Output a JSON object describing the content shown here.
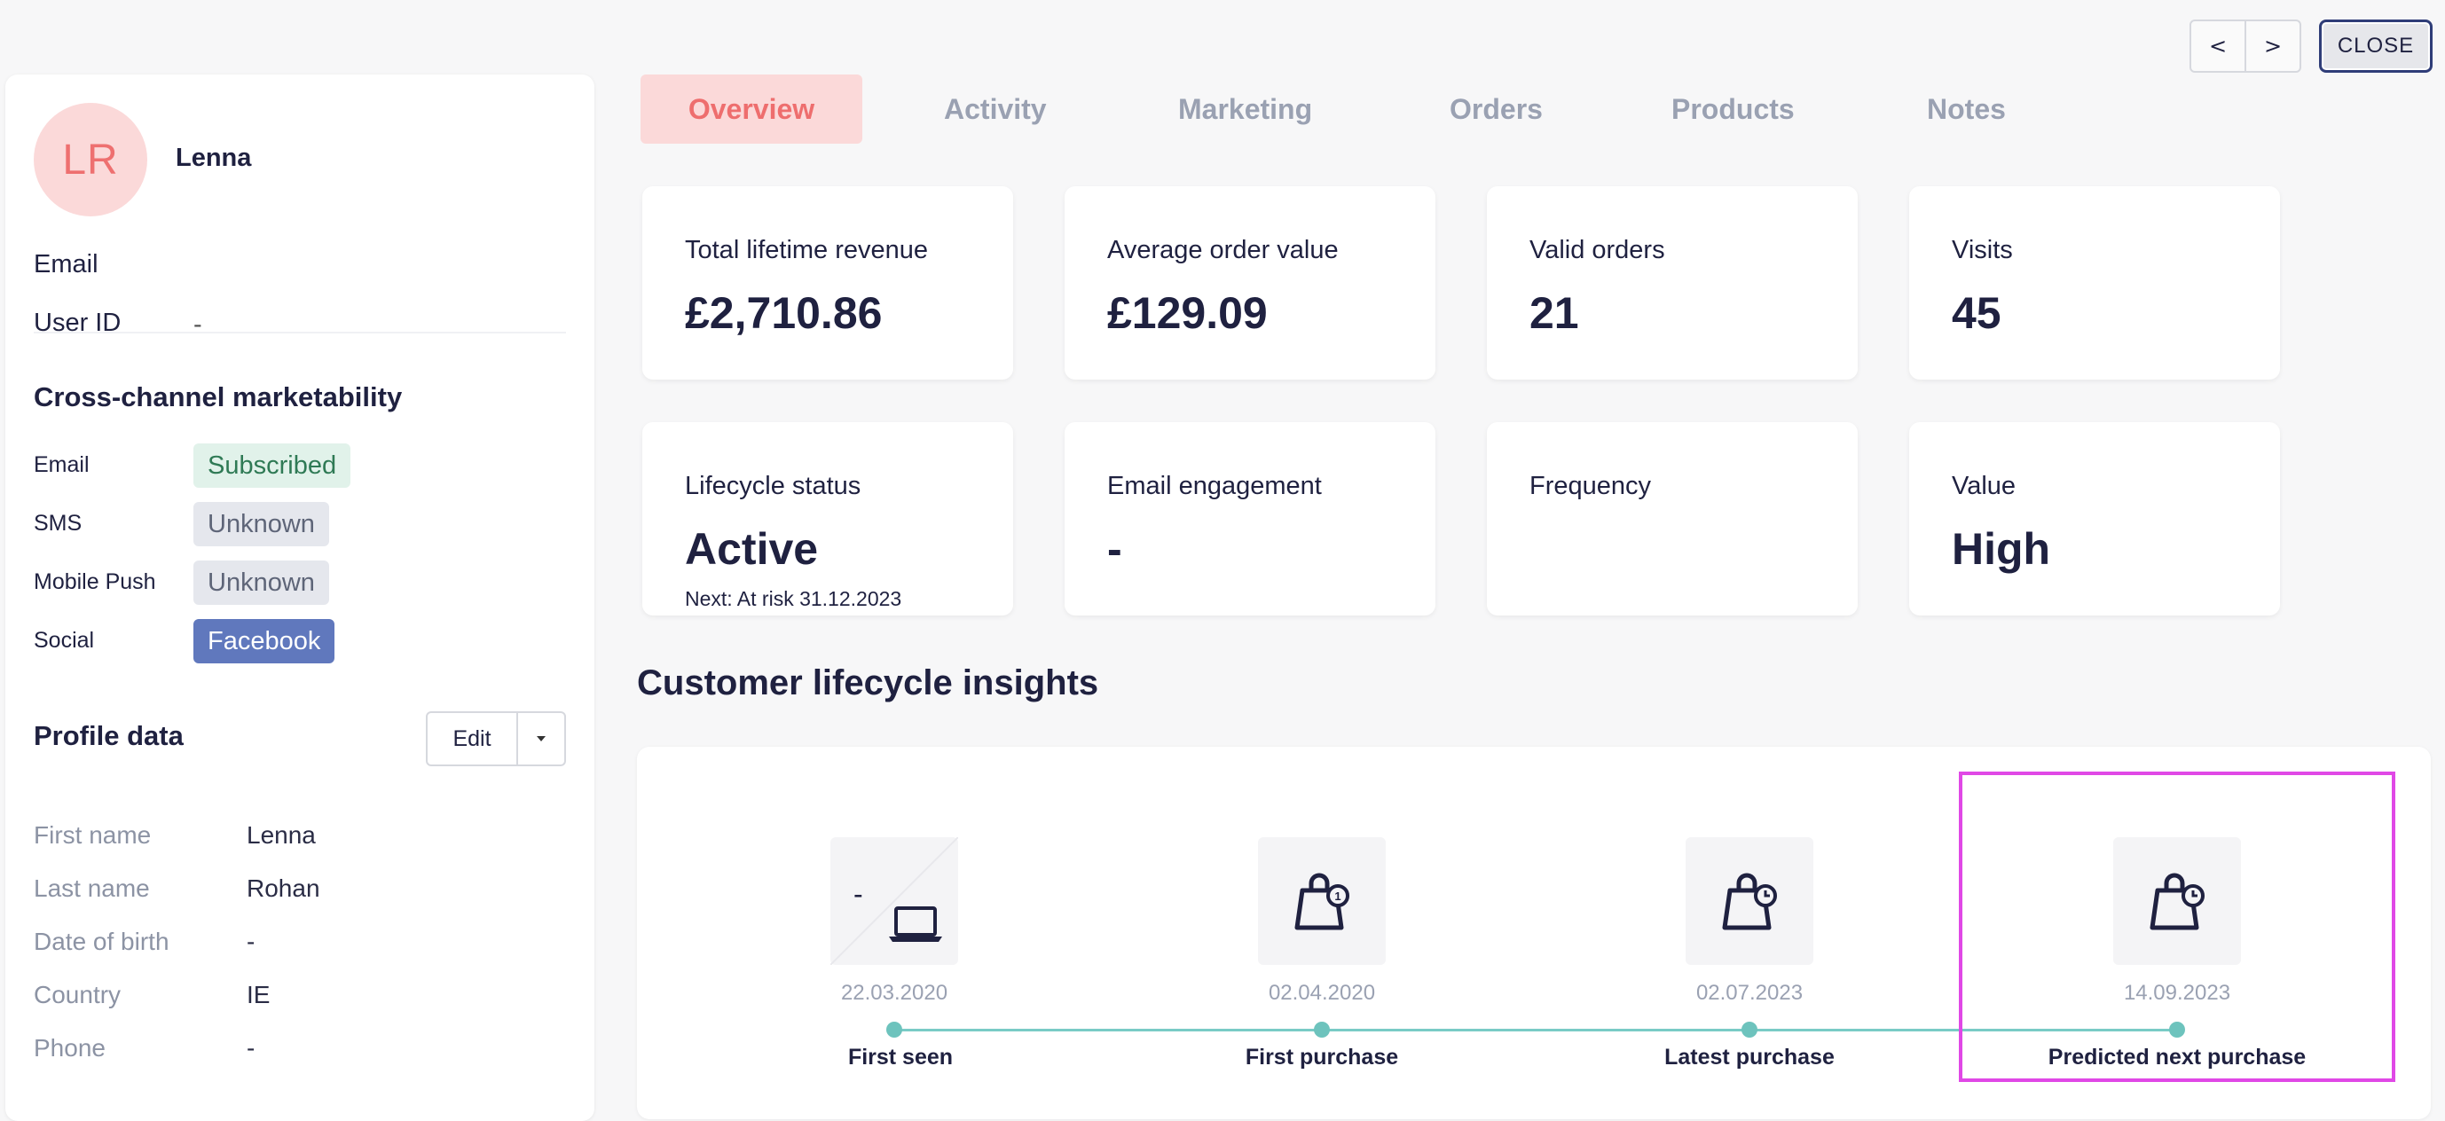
{
  "nav": {
    "prev": "<",
    "next": ">",
    "close": "CLOSE"
  },
  "profile": {
    "initials": "LR",
    "name": "Lenna",
    "email_label": "Email",
    "email_value": "",
    "userid_label": "User ID",
    "userid_value": "-"
  },
  "marketability": {
    "title": "Cross-channel marketability",
    "rows": [
      {
        "channel": "Email",
        "status": "Subscribed"
      },
      {
        "channel": "SMS",
        "status": "Unknown"
      },
      {
        "channel": "Mobile Push",
        "status": "Unknown"
      },
      {
        "channel": "Social",
        "status": "Facebook"
      }
    ]
  },
  "profile_data": {
    "title": "Profile data",
    "edit_label": "Edit",
    "fields": [
      {
        "label": "First name",
        "value": "Lenna"
      },
      {
        "label": "Last name",
        "value": "Rohan"
      },
      {
        "label": "Date of birth",
        "value": "-"
      },
      {
        "label": "Country",
        "value": "IE"
      },
      {
        "label": "Phone",
        "value": "-"
      }
    ]
  },
  "tabs": [
    "Overview",
    "Activity",
    "Marketing",
    "Orders",
    "Products",
    "Notes"
  ],
  "active_tab": "Overview",
  "cards": [
    {
      "label": "Total lifetime revenue",
      "value": "£2,710.86"
    },
    {
      "label": "Average order value",
      "value": "£129.09"
    },
    {
      "label": "Valid orders",
      "value": "21"
    },
    {
      "label": "Visits",
      "value": "45"
    },
    {
      "label": "Lifecycle status",
      "value": "Active",
      "sub": "Next: At risk 31.12.2023"
    },
    {
      "label": "Email engagement",
      "value": "-"
    },
    {
      "label": "Frequency",
      "value": ""
    },
    {
      "label": "Value",
      "value": "High"
    }
  ],
  "insights": {
    "title": "Customer lifecycle insights",
    "first_seen_badge": "-",
    "milestones": [
      {
        "date": "22.03.2020",
        "label": "First seen",
        "icon": "laptop-icon"
      },
      {
        "date": "02.04.2020",
        "label": "First purchase",
        "icon": "shopping-bag-1-icon"
      },
      {
        "date": "02.07.2023",
        "label": "Latest purchase",
        "icon": "shopping-bag-clock-icon"
      },
      {
        "date": "14.09.2023",
        "label": "Predicted next purchase",
        "icon": "shopping-bag-clock-icon"
      }
    ]
  },
  "colors": {
    "accent_pink": "#ee6e6e",
    "timeline_teal": "#6dc3bd",
    "highlight": "#e048e6",
    "facebook": "#6078bd"
  }
}
